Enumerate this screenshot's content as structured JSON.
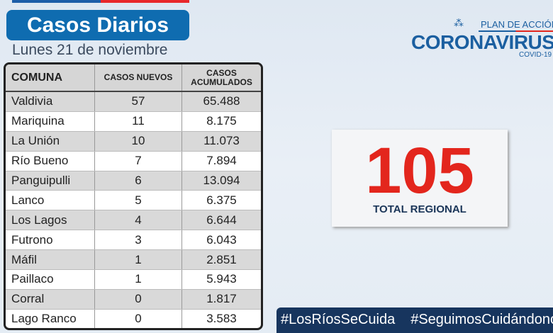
{
  "header": {
    "title": "Casos Diarios",
    "date": "Lunes 21 de noviembre"
  },
  "logo": {
    "plan": "PLAN DE ACCIÓN",
    "name": "CORONAVIRUS",
    "sub": "COVID-19"
  },
  "table": {
    "headers": [
      "COMUNA",
      "CASOS NUEVOS",
      "CASOS ACUMULADOS"
    ],
    "rows": [
      [
        "Valdivia",
        "57",
        "65.488"
      ],
      [
        "Mariquina",
        "11",
        "8.175"
      ],
      [
        "La Unión",
        "10",
        "11.073"
      ],
      [
        "Río Bueno",
        "7",
        "7.894"
      ],
      [
        "Panguipulli",
        "6",
        "13.094"
      ],
      [
        "Lanco",
        "5",
        "6.375"
      ],
      [
        "Los Lagos",
        "4",
        "6.644"
      ],
      [
        "Futrono",
        "3",
        "6.043"
      ],
      [
        "Máfil",
        "1",
        "2.851"
      ],
      [
        "Paillaco",
        "1",
        "5.943"
      ],
      [
        "Corral",
        "0",
        "1.817"
      ],
      [
        "Lago Ranco",
        "0",
        "3.583"
      ]
    ]
  },
  "total": {
    "value": "105",
    "label": "TOTAL REGIONAL"
  },
  "hashtags": [
    "#LosRíosSeCuida",
    "#SeguimosCuidándonos"
  ]
}
